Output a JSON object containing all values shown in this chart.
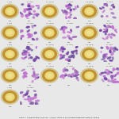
{
  "title": "Table 1. Characteristics and Halo : Colony ratios of 13 amylase-producing bacterial strains",
  "grid_rows": 5,
  "grid_cols": 6,
  "fig_bg": "#e8e8e8",
  "cell_border_color": "#aaaaaa",
  "colony_bg": "#1a1a50",
  "colony_ring_color": "#c09030",
  "colony_inner_color": "#e8d878",
  "colony_center_color": "#f0e090",
  "stain_bg_colors": [
    "#f0f0f8",
    "#f4eef8",
    "#f8f0fc",
    "#ece8f4",
    "#f4f0f8"
  ],
  "stain_dot_colors": [
    "#9060b0",
    "#a070b8",
    "#7050a0",
    "#b080c0",
    "#8060a8"
  ],
  "stain_dot_sizes_row": [
    [
      15,
      25,
      20,
      18,
      22,
      12
    ],
    [
      20,
      18,
      25,
      15,
      20,
      18
    ],
    [
      18,
      22,
      20,
      25,
      15,
      20
    ],
    [
      20,
      15,
      22,
      20,
      18,
      25
    ],
    [
      18,
      20,
      0,
      0,
      0,
      0
    ]
  ],
  "cell_types": [
    [
      "C",
      "S",
      "C",
      "S",
      "C",
      "S"
    ],
    [
      "C",
      "S",
      "C",
      "S",
      "C",
      "S"
    ],
    [
      "C",
      "S",
      "C",
      "S",
      "C",
      "S"
    ],
    [
      "C",
      "S",
      "C",
      "S",
      "C",
      "S"
    ],
    [
      "C",
      "S",
      "E",
      "E",
      "E",
      "E"
    ]
  ],
  "top_labels": [
    [
      "1 (N1)",
      "Gr. stain",
      "1-1 (N1-3)",
      "Gr. stain",
      "1-2 (N1-5)",
      "Gr. stain"
    ],
    [
      "1 (N2)",
      "Gr. stain",
      "1-1 (N2-3)",
      "Gr. stain",
      "1-2 (N2-5)",
      "Gr. stain"
    ],
    [
      "1 (N3)",
      "Gr. stain",
      "1-1 (N3-3)",
      "Gr. stain",
      "1-2 (N3-5)",
      "Gr. stain"
    ],
    [
      "1 (N4)",
      "Gr. stain",
      "1-1 (N4-3)",
      "Gr. stain",
      "1-2 (N4-5)",
      "Gr. stain"
    ],
    [
      "1 (N5)",
      "Gr. stain",
      "",
      "",
      "",
      ""
    ]
  ],
  "bottom_labels": [
    [
      "1.18",
      "0.61",
      "1.71",
      "0.61",
      "1.78",
      "0.71"
    ],
    [
      "1.08",
      "0.91",
      "1.91",
      "0.81",
      "1.81",
      "0.76"
    ],
    [
      "1.08",
      "1.79",
      "1.71",
      "0.81",
      "1.84",
      "1.84"
    ],
    [
      "1.08",
      "1.01",
      "1.18",
      "0.91",
      "1.18",
      "0.81"
    ],
    [
      "1.08",
      "0.91",
      "",
      "",
      "",
      ""
    ]
  ],
  "label_fontsize": 1.4,
  "caption_fontsize": 1.6,
  "figsize": [
    1.5,
    1.5
  ],
  "dpi": 100
}
